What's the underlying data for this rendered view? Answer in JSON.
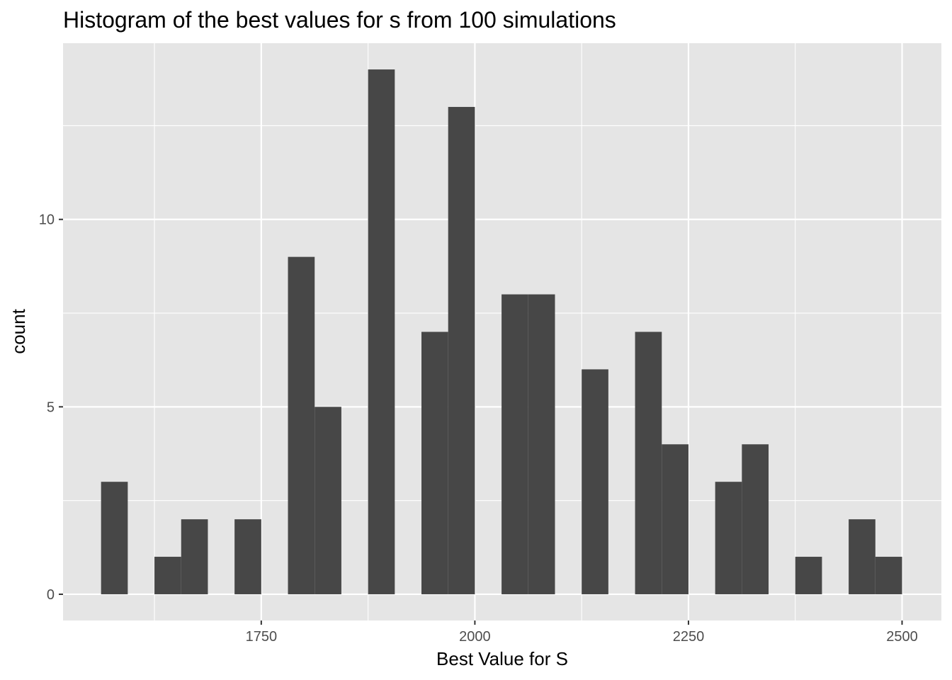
{
  "chart_data": {
    "type": "bar",
    "subtype": "histogram",
    "title": "Histogram of the best values for s from 100 simulations",
    "xlabel": "Best Value for S",
    "ylabel": "count",
    "xlim": [
      1518,
      2546
    ],
    "ylim": [
      -0.7,
      14.7
    ],
    "x_ticks": [
      1750,
      2000,
      2250,
      2500
    ],
    "y_ticks": [
      0,
      5,
      10
    ],
    "x_tick_labels": [
      "1750",
      "2000",
      "2250",
      "2500"
    ],
    "y_tick_labels": [
      "0",
      "5",
      "10"
    ],
    "grid": true,
    "bin_width": 31.25,
    "bins": [
      {
        "x_start": 1562.5,
        "x_end": 1593.75,
        "count": 3
      },
      {
        "x_start": 1593.75,
        "x_end": 1625.0,
        "count": 0
      },
      {
        "x_start": 1625.0,
        "x_end": 1656.25,
        "count": 1
      },
      {
        "x_start": 1656.25,
        "x_end": 1687.5,
        "count": 2
      },
      {
        "x_start": 1687.5,
        "x_end": 1718.75,
        "count": 0
      },
      {
        "x_start": 1718.75,
        "x_end": 1750.0,
        "count": 2
      },
      {
        "x_start": 1750.0,
        "x_end": 1781.25,
        "count": 0
      },
      {
        "x_start": 1781.25,
        "x_end": 1812.5,
        "count": 9
      },
      {
        "x_start": 1812.5,
        "x_end": 1843.75,
        "count": 5
      },
      {
        "x_start": 1843.75,
        "x_end": 1875.0,
        "count": 0
      },
      {
        "x_start": 1875.0,
        "x_end": 1906.25,
        "count": 14
      },
      {
        "x_start": 1906.25,
        "x_end": 1937.5,
        "count": 0
      },
      {
        "x_start": 1937.5,
        "x_end": 1968.75,
        "count": 7
      },
      {
        "x_start": 1968.75,
        "x_end": 2000.0,
        "count": 13
      },
      {
        "x_start": 2000.0,
        "x_end": 2031.25,
        "count": 0
      },
      {
        "x_start": 2031.25,
        "x_end": 2062.5,
        "count": 8
      },
      {
        "x_start": 2062.5,
        "x_end": 2093.75,
        "count": 8
      },
      {
        "x_start": 2093.75,
        "x_end": 2125.0,
        "count": 0
      },
      {
        "x_start": 2125.0,
        "x_end": 2156.25,
        "count": 6
      },
      {
        "x_start": 2156.25,
        "x_end": 2187.5,
        "count": 0
      },
      {
        "x_start": 2187.5,
        "x_end": 2218.75,
        "count": 7
      },
      {
        "x_start": 2218.75,
        "x_end": 2250.0,
        "count": 4
      },
      {
        "x_start": 2250.0,
        "x_end": 2281.25,
        "count": 0
      },
      {
        "x_start": 2281.25,
        "x_end": 2312.5,
        "count": 3
      },
      {
        "x_start": 2312.5,
        "x_end": 2343.75,
        "count": 4
      },
      {
        "x_start": 2343.75,
        "x_end": 2375.0,
        "count": 0
      },
      {
        "x_start": 2375.0,
        "x_end": 2406.25,
        "count": 1
      },
      {
        "x_start": 2406.25,
        "x_end": 2437.5,
        "count": 0
      },
      {
        "x_start": 2437.5,
        "x_end": 2468.75,
        "count": 2
      },
      {
        "x_start": 2468.75,
        "x_end": 2500.0,
        "count": 1
      }
    ],
    "colors": {
      "bar": "#474747",
      "panel": "#e5e5e5",
      "grid": "#ffffff",
      "tick_text": "#4d4d4d",
      "tick_mark": "#333333"
    }
  }
}
